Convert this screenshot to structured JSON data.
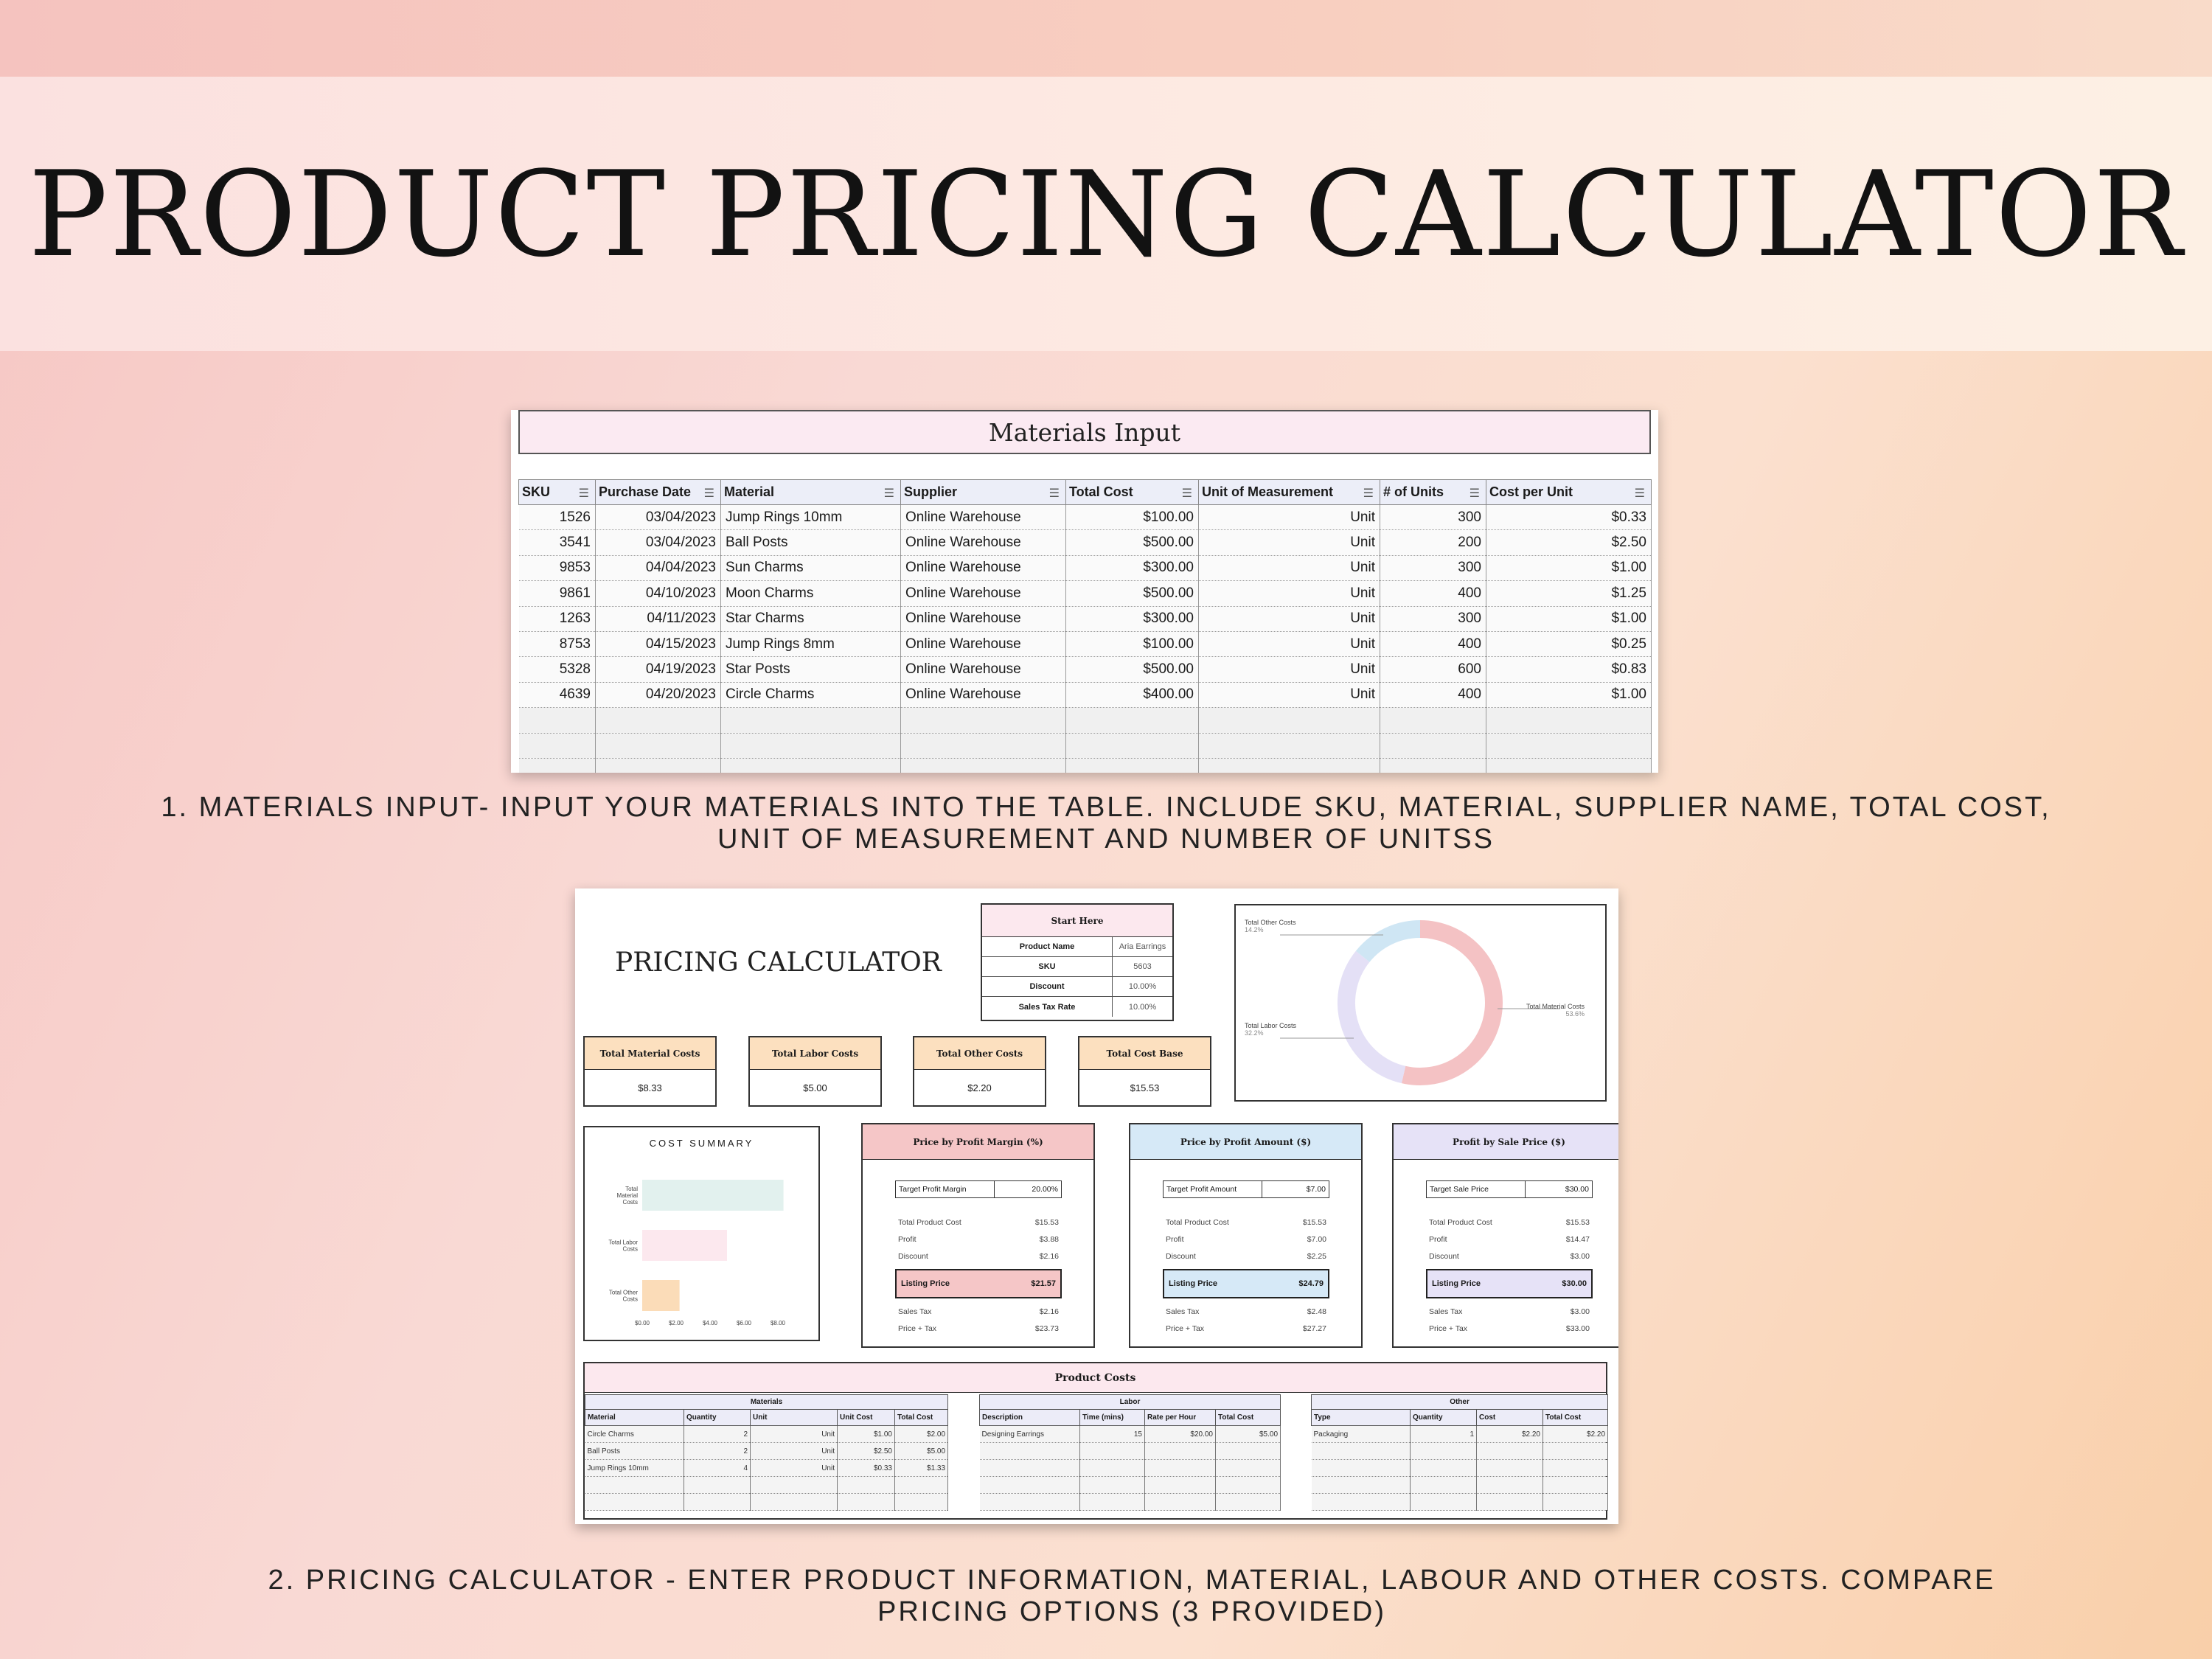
{
  "page_title": "PRODUCT PRICING CALCULATOR",
  "materials_sheet": {
    "title": "Materials Input",
    "columns": [
      "SKU",
      "Purchase Date",
      "Material",
      "Supplier",
      "Total Cost",
      "Unit of Measurement",
      "# of Units",
      "Cost per Unit"
    ],
    "rows": [
      [
        "1526",
        "03/04/2023",
        "Jump Rings 10mm",
        "Online Warehouse",
        "$100.00",
        "Unit",
        "300",
        "$0.33"
      ],
      [
        "3541",
        "03/04/2023",
        "Ball Posts",
        "Online Warehouse",
        "$500.00",
        "Unit",
        "200",
        "$2.50"
      ],
      [
        "9853",
        "04/04/2023",
        "Sun Charms",
        "Online Warehouse",
        "$300.00",
        "Unit",
        "300",
        "$1.00"
      ],
      [
        "9861",
        "04/10/2023",
        "Moon Charms",
        "Online Warehouse",
        "$500.00",
        "Unit",
        "400",
        "$1.25"
      ],
      [
        "1263",
        "04/11/2023",
        "Star Charms",
        "Online Warehouse",
        "$300.00",
        "Unit",
        "300",
        "$1.00"
      ],
      [
        "8753",
        "04/15/2023",
        "Jump Rings 8mm",
        "Online Warehouse",
        "$100.00",
        "Unit",
        "400",
        "$0.25"
      ],
      [
        "5328",
        "04/19/2023",
        "Star Posts",
        "Online Warehouse",
        "$500.00",
        "Unit",
        "600",
        "$0.83"
      ],
      [
        "4639",
        "04/20/2023",
        "Circle Charms",
        "Online Warehouse",
        "$400.00",
        "Unit",
        "400",
        "$1.00"
      ]
    ]
  },
  "caption1": "1.  MATERIALS INPUT- INPUT YOUR MATERIALS INTO THE TABLE. INCLUDE SKU, MATERIAL, SUPPLIER NAME, TOTAL COST, UNIT OF MEASUREMENT AND NUMBER OF UNITSS",
  "calculator": {
    "title": "PRICING CALCULATOR",
    "start_here": {
      "header": "Start Here",
      "fields": [
        {
          "label": "Product Name",
          "value": "Aria Earrings"
        },
        {
          "label": "SKU",
          "value": "5603"
        },
        {
          "label": "Discount",
          "value": "10.00%"
        },
        {
          "label": "Sales Tax Rate",
          "value": "10.00%"
        }
      ]
    },
    "donut": {
      "slices": [
        {
          "name": "Total Material Costs",
          "pct": "53.6%",
          "value": 53.6,
          "color": "#f4c2c4"
        },
        {
          "name": "Total Labor Costs",
          "pct": "32.2%",
          "value": 32.2,
          "color": "#e4e0f6"
        },
        {
          "name": "Total Other Costs",
          "pct": "14.2%",
          "value": 14.2,
          "color": "#cfe6f4"
        }
      ]
    },
    "kpis": [
      {
        "label": "Total Material Costs",
        "value": "$8.33"
      },
      {
        "label": "Total Labor Costs",
        "value": "$5.00"
      },
      {
        "label": "Total Other Costs",
        "value": "$2.20"
      },
      {
        "label": "Total Cost Base",
        "value": "$15.53"
      }
    ],
    "cost_summary": {
      "title": "COST SUMMARY",
      "chart_data": {
        "type": "bar",
        "orientation": "horizontal",
        "categories": [
          "Total Material Costs",
          "Total Labor Costs",
          "Total Other Costs"
        ],
        "values": [
          8.33,
          5.0,
          2.2
        ],
        "colors": [
          "#e2f1ee",
          "#fce8ee",
          "#fbdcb8"
        ],
        "xlim": [
          0,
          8
        ],
        "tick_labels": [
          "$0.00",
          "$2.00",
          "$4.00",
          "$6.00",
          "$8.00"
        ]
      }
    },
    "price_options": [
      {
        "header": "Price by Profit Margin (%)",
        "color": "#f5c6c7",
        "target_label": "Target Profit Margin",
        "target_value": "20.00%",
        "lines": [
          {
            "k": "Total Product Cost",
            "v": "$15.53"
          },
          {
            "k": "Profit",
            "v": "$3.88"
          },
          {
            "k": "Discount",
            "v": "$2.16"
          }
        ],
        "listing_label": "Listing Price",
        "listing_value": "$21.57",
        "lines2": [
          {
            "k": "Sales Tax",
            "v": "$2.16"
          },
          {
            "k": "Price + Tax",
            "v": "$23.73"
          }
        ]
      },
      {
        "header": "Price by Profit Amount ($)",
        "color": "#d6e9f7",
        "target_label": "Target Profit Amount",
        "target_value": "$7.00",
        "lines": [
          {
            "k": "Total Product Cost",
            "v": "$15.53"
          },
          {
            "k": "Profit",
            "v": "$7.00"
          },
          {
            "k": "Discount",
            "v": "$2.25"
          }
        ],
        "listing_label": "Listing Price",
        "listing_value": "$24.79",
        "lines2": [
          {
            "k": "Sales Tax",
            "v": "$2.48"
          },
          {
            "k": "Price + Tax",
            "v": "$27.27"
          }
        ]
      },
      {
        "header": "Profit by Sale Price ($)",
        "color": "#e6e2f7",
        "target_label": "Target Sale Price",
        "target_value": "$30.00",
        "lines": [
          {
            "k": "Total Product Cost",
            "v": "$15.53"
          },
          {
            "k": "Profit",
            "v": "$14.47"
          },
          {
            "k": "Discount",
            "v": "$3.00"
          }
        ],
        "listing_label": "Listing Price",
        "listing_value": "$30.00",
        "lines2": [
          {
            "k": "Sales Tax",
            "v": "$3.00"
          },
          {
            "k": "Price + Tax",
            "v": "$33.00"
          }
        ]
      }
    ],
    "product_costs": {
      "header": "Product Costs",
      "materials": {
        "title": "Materials",
        "columns": [
          "Material",
          "Quantity",
          "Unit",
          "Unit Cost",
          "Total Cost"
        ],
        "rows": [
          [
            "Circle Charms",
            "2",
            "Unit",
            "$1.00",
            "$2.00"
          ],
          [
            "Ball Posts",
            "2",
            "Unit",
            "$2.50",
            "$5.00"
          ],
          [
            "Jump Rings 10mm",
            "4",
            "Unit",
            "$0.33",
            "$1.33"
          ]
        ]
      },
      "labor": {
        "title": "Labor",
        "columns": [
          "Description",
          "Time (mins)",
          "Rate per Hour",
          "Total Cost"
        ],
        "rows": [
          [
            "Designing Earrings",
            "15",
            "$20.00",
            "$5.00"
          ]
        ]
      },
      "other": {
        "title": "Other",
        "columns": [
          "Type",
          "Quantity",
          "Cost",
          "Total Cost"
        ],
        "rows": [
          [
            "Packaging",
            "1",
            "$2.20",
            "$2.20"
          ]
        ]
      }
    }
  },
  "caption2": "2. PRICING CALCULATOR - ENTER PRODUCT INFORMATION, MATERIAL, LABOUR AND OTHER COSTS. COMPARE PRICING OPTIONS (3 PROVIDED)"
}
